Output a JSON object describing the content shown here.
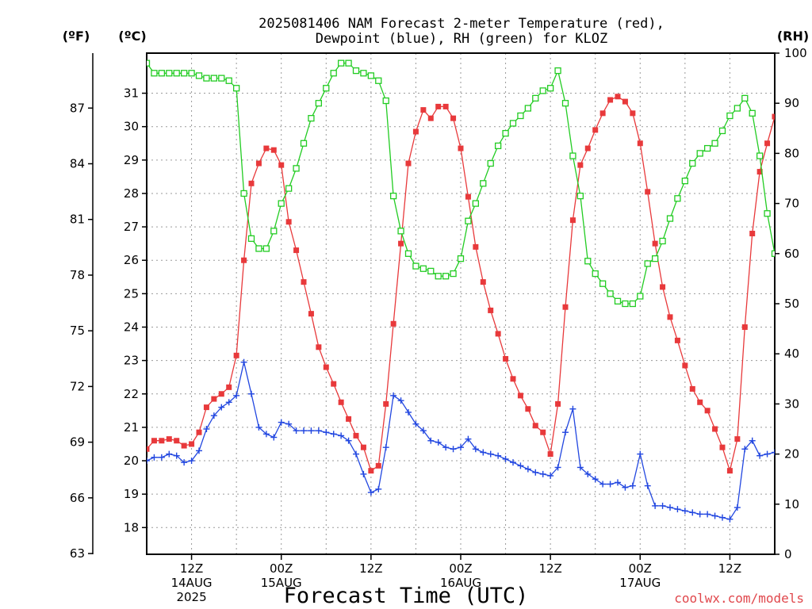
{
  "colors": {
    "temperature": "#e8393b",
    "dewpoint": "#2247e0",
    "rh": "#22cc22",
    "credit": "#e0474c"
  },
  "chart_data": {
    "type": "line",
    "title_line1": "2025081406 NAM Forecast 2-meter Temperature (red),",
    "title_line2": "Dewpoint (blue), RH (green) for KLOZ",
    "unit_f": "(ºF)",
    "unit_c": "(ºC)",
    "unit_rh": "(RH)",
    "xlabel": "Forecast Time (UTC)",
    "credit": "coolwx.com/models",
    "grid": true,
    "x_range_hours": [
      6,
      90
    ],
    "x_ticks": [
      {
        "hour": 12,
        "line1": "12Z",
        "line2": "14AUG",
        "line3": "2025"
      },
      {
        "hour": 24,
        "line1": "00Z",
        "line2": "15AUG",
        "line3": ""
      },
      {
        "hour": 36,
        "line1": "12Z",
        "line2": "",
        "line3": ""
      },
      {
        "hour": 48,
        "line1": "00Z",
        "line2": "16AUG",
        "line3": ""
      },
      {
        "hour": 60,
        "line1": "12Z",
        "line2": "",
        "line3": ""
      },
      {
        "hour": 72,
        "line1": "00Z",
        "line2": "17AUG",
        "line3": ""
      },
      {
        "hour": 84,
        "line1": "12Z",
        "line2": "",
        "line3": ""
      }
    ],
    "left_c_axis": {
      "range": [
        17.2,
        32.2
      ],
      "ticks": [
        "18",
        "19",
        "20",
        "21",
        "22",
        "23",
        "24",
        "25",
        "26",
        "27",
        "28",
        "29",
        "30",
        "31"
      ]
    },
    "left_f_axis": {
      "ticks": [
        "63",
        "66",
        "69",
        "72",
        "75",
        "78",
        "81",
        "84",
        "87"
      ]
    },
    "right_rh_axis": {
      "range": [
        0,
        100
      ],
      "ticks": [
        "0",
        "10",
        "20",
        "30",
        "40",
        "50",
        "60",
        "70",
        "80",
        "90",
        "100"
      ]
    },
    "series": [
      {
        "name": "Temperature",
        "unit": "°C",
        "points": [
          [
            6,
            20.35
          ],
          [
            7,
            20.6
          ],
          [
            8,
            20.6
          ],
          [
            9,
            20.65
          ],
          [
            10,
            20.6
          ],
          [
            11,
            20.45
          ],
          [
            12,
            20.5
          ],
          [
            13,
            20.85
          ],
          [
            14,
            21.6
          ],
          [
            15,
            21.85
          ],
          [
            16,
            22.0
          ],
          [
            17,
            22.2
          ],
          [
            18,
            23.15
          ],
          [
            19,
            26.0
          ],
          [
            20,
            28.3
          ],
          [
            21,
            28.9
          ],
          [
            22,
            29.35
          ],
          [
            23,
            29.3
          ],
          [
            24,
            28.85
          ],
          [
            25,
            27.15
          ],
          [
            26,
            26.3
          ],
          [
            27,
            25.35
          ],
          [
            28,
            24.4
          ],
          [
            29,
            23.4
          ],
          [
            30,
            22.8
          ],
          [
            31,
            22.3
          ],
          [
            32,
            21.75
          ],
          [
            33,
            21.25
          ],
          [
            34,
            20.75
          ],
          [
            35,
            20.4
          ],
          [
            36,
            19.7
          ],
          [
            37,
            19.85
          ],
          [
            38,
            21.7
          ],
          [
            39,
            24.1
          ],
          [
            40,
            26.5
          ],
          [
            41,
            28.9
          ],
          [
            42,
            29.85
          ],
          [
            43,
            30.5
          ],
          [
            44,
            30.25
          ],
          [
            45,
            30.6
          ],
          [
            46,
            30.6
          ],
          [
            47,
            30.25
          ],
          [
            48,
            29.35
          ],
          [
            49,
            27.9
          ],
          [
            50,
            26.4
          ],
          [
            51,
            25.35
          ],
          [
            52,
            24.5
          ],
          [
            53,
            23.8
          ],
          [
            54,
            23.05
          ],
          [
            55,
            22.45
          ],
          [
            56,
            21.95
          ],
          [
            57,
            21.55
          ],
          [
            58,
            21.05
          ],
          [
            59,
            20.85
          ],
          [
            60,
            20.2
          ],
          [
            61,
            21.7
          ],
          [
            62,
            24.6
          ],
          [
            63,
            27.2
          ],
          [
            64,
            28.85
          ],
          [
            65,
            29.35
          ],
          [
            66,
            29.9
          ],
          [
            67,
            30.4
          ],
          [
            68,
            30.8
          ],
          [
            69,
            30.9
          ],
          [
            70,
            30.75
          ],
          [
            71,
            30.4
          ],
          [
            72,
            29.5
          ],
          [
            73,
            28.05
          ],
          [
            74,
            26.5
          ],
          [
            75,
            25.2
          ],
          [
            76,
            24.3
          ],
          [
            77,
            23.6
          ],
          [
            78,
            22.85
          ],
          [
            79,
            22.15
          ],
          [
            80,
            21.75
          ],
          [
            81,
            21.5
          ],
          [
            82,
            20.95
          ],
          [
            83,
            20.4
          ],
          [
            84,
            19.7
          ],
          [
            85,
            20.65
          ],
          [
            86,
            24.0
          ],
          [
            87,
            26.8
          ],
          [
            88,
            28.65
          ],
          [
            89,
            29.5
          ],
          [
            90,
            30.3
          ],
          [
            91,
            31.0
          ]
        ]
      },
      {
        "name": "Dewpoint",
        "unit": "°C",
        "points": [
          [
            6,
            20.0
          ],
          [
            7,
            20.1
          ],
          [
            8,
            20.1
          ],
          [
            9,
            20.2
          ],
          [
            10,
            20.15
          ],
          [
            11,
            19.95
          ],
          [
            12,
            20.0
          ],
          [
            13,
            20.3
          ],
          [
            14,
            20.95
          ],
          [
            15,
            21.35
          ],
          [
            16,
            21.6
          ],
          [
            17,
            21.75
          ],
          [
            18,
            21.95
          ],
          [
            19,
            22.95
          ],
          [
            20,
            22.0
          ],
          [
            21,
            21.0
          ],
          [
            22,
            20.8
          ],
          [
            23,
            20.7
          ],
          [
            24,
            21.15
          ],
          [
            25,
            21.1
          ],
          [
            26,
            20.9
          ],
          [
            27,
            20.9
          ],
          [
            28,
            20.9
          ],
          [
            29,
            20.9
          ],
          [
            30,
            20.85
          ],
          [
            31,
            20.8
          ],
          [
            32,
            20.75
          ],
          [
            33,
            20.6
          ],
          [
            34,
            20.2
          ],
          [
            35,
            19.6
          ],
          [
            36,
            19.05
          ],
          [
            37,
            19.15
          ],
          [
            38,
            20.4
          ],
          [
            39,
            21.95
          ],
          [
            40,
            21.8
          ],
          [
            41,
            21.45
          ],
          [
            42,
            21.1
          ],
          [
            43,
            20.9
          ],
          [
            44,
            20.6
          ],
          [
            45,
            20.55
          ],
          [
            46,
            20.4
          ],
          [
            47,
            20.35
          ],
          [
            48,
            20.4
          ],
          [
            49,
            20.65
          ],
          [
            50,
            20.35
          ],
          [
            51,
            20.25
          ],
          [
            52,
            20.2
          ],
          [
            53,
            20.15
          ],
          [
            54,
            20.05
          ],
          [
            55,
            19.95
          ],
          [
            56,
            19.85
          ],
          [
            57,
            19.75
          ],
          [
            58,
            19.65
          ],
          [
            59,
            19.6
          ],
          [
            60,
            19.55
          ],
          [
            61,
            19.8
          ],
          [
            62,
            20.85
          ],
          [
            63,
            21.55
          ],
          [
            64,
            19.8
          ],
          [
            65,
            19.6
          ],
          [
            66,
            19.45
          ],
          [
            67,
            19.3
          ],
          [
            68,
            19.3
          ],
          [
            69,
            19.35
          ],
          [
            70,
            19.2
          ],
          [
            71,
            19.25
          ],
          [
            72,
            20.2
          ],
          [
            73,
            19.25
          ],
          [
            74,
            18.65
          ],
          [
            75,
            18.65
          ],
          [
            76,
            18.6
          ],
          [
            77,
            18.55
          ],
          [
            78,
            18.5
          ],
          [
            79,
            18.45
          ],
          [
            80,
            18.4
          ],
          [
            81,
            18.4
          ],
          [
            82,
            18.35
          ],
          [
            83,
            18.3
          ],
          [
            84,
            18.25
          ],
          [
            85,
            18.6
          ],
          [
            86,
            20.35
          ],
          [
            87,
            20.6
          ],
          [
            88,
            20.15
          ],
          [
            89,
            20.2
          ],
          [
            90,
            20.25
          ],
          [
            91,
            20.3
          ]
        ]
      },
      {
        "name": "RH",
        "unit": "%",
        "points": [
          [
            6,
            98.0
          ],
          [
            7,
            96.0
          ],
          [
            8,
            96.0
          ],
          [
            9,
            96.0
          ],
          [
            10,
            96.0
          ],
          [
            11,
            96.0
          ],
          [
            12,
            96.0
          ],
          [
            13,
            95.5
          ],
          [
            14,
            95.0
          ],
          [
            15,
            95.0
          ],
          [
            16,
            95.0
          ],
          [
            17,
            94.5
          ],
          [
            18,
            93.0
          ],
          [
            19,
            72.0
          ],
          [
            20,
            63.0
          ],
          [
            21,
            61.0
          ],
          [
            22,
            61.0
          ],
          [
            23,
            64.5
          ],
          [
            24,
            70.0
          ],
          [
            25,
            73.0
          ],
          [
            26,
            77.0
          ],
          [
            27,
            82.0
          ],
          [
            28,
            87.0
          ],
          [
            29,
            90.0
          ],
          [
            30,
            93.0
          ],
          [
            31,
            96.0
          ],
          [
            32,
            98.0
          ],
          [
            33,
            98.0
          ],
          [
            34,
            96.5
          ],
          [
            35,
            96.0
          ],
          [
            36,
            95.5
          ],
          [
            37,
            94.5
          ],
          [
            38,
            90.5
          ],
          [
            39,
            71.5
          ],
          [
            40,
            64.5
          ],
          [
            41,
            60.0
          ],
          [
            42,
            57.5
          ],
          [
            43,
            57.0
          ],
          [
            44,
            56.5
          ],
          [
            45,
            55.5
          ],
          [
            46,
            55.5
          ],
          [
            47,
            56.0
          ],
          [
            48,
            59.0
          ],
          [
            49,
            66.5
          ],
          [
            50,
            70.0
          ],
          [
            51,
            74.0
          ],
          [
            52,
            78.0
          ],
          [
            53,
            81.5
          ],
          [
            54,
            84.0
          ],
          [
            55,
            86.0
          ],
          [
            56,
            87.5
          ],
          [
            57,
            89.0
          ],
          [
            58,
            91.0
          ],
          [
            59,
            92.5
          ],
          [
            60,
            93.0
          ],
          [
            61,
            96.5
          ],
          [
            62,
            90.0
          ],
          [
            63,
            79.5
          ],
          [
            64,
            71.5
          ],
          [
            65,
            58.5
          ],
          [
            66,
            56.0
          ],
          [
            67,
            54.0
          ],
          [
            68,
            52.0
          ],
          [
            69,
            50.5
          ],
          [
            70,
            50.0
          ],
          [
            71,
            50.0
          ],
          [
            72,
            51.5
          ],
          [
            73,
            58.0
          ],
          [
            74,
            59.0
          ],
          [
            75,
            62.5
          ],
          [
            76,
            67.0
          ],
          [
            77,
            71.0
          ],
          [
            78,
            74.5
          ],
          [
            79,
            78.0
          ],
          [
            80,
            80.0
          ],
          [
            81,
            81.0
          ],
          [
            82,
            82.0
          ],
          [
            83,
            84.5
          ],
          [
            84,
            87.5
          ],
          [
            85,
            89.0
          ],
          [
            86,
            91.0
          ],
          [
            87,
            88.0
          ],
          [
            88,
            79.5
          ],
          [
            89,
            68.0
          ],
          [
            90,
            60.0
          ],
          [
            91,
            57.0
          ],
          [
            92,
            55.5
          ],
          [
            93,
            53.5
          ]
        ]
      }
    ]
  }
}
